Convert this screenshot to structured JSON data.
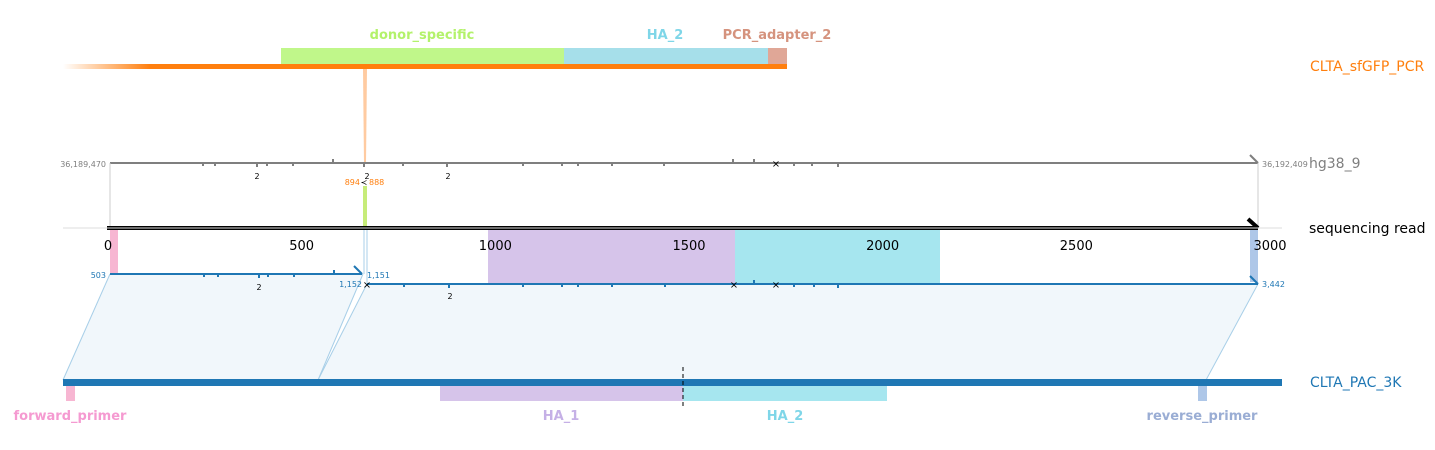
{
  "references": {
    "pcr": {
      "name": "CLTA_sfGFP_PCR",
      "color": "#ff7f0e"
    },
    "genome": {
      "name": "hg38_9",
      "color": "#7f7f7f",
      "start_coord": "36,189,470",
      "end_coord": "36,192,409"
    },
    "read": {
      "name": "sequencing read",
      "color": "#000000"
    },
    "plasmid": {
      "name": "CLTA_PAC_3K",
      "color": "#1f77b4"
    }
  },
  "read_axis": {
    "ticks": [
      "0",
      "500",
      "1000",
      "1500",
      "2000",
      "2500",
      "3000"
    ]
  },
  "features_top": [
    {
      "name": "donor_specific",
      "color": "#c0f78a",
      "label_color": "#b3f26b"
    },
    {
      "name": "HA_2",
      "color": "#a6dfea",
      "label_color": "#7fd6e8"
    },
    {
      "name": "PCR_adapter_2",
      "color": "#e0a797",
      "label_color": "#d5937e"
    }
  ],
  "features_bottom": [
    {
      "name": "forward_primer",
      "color": "#f7b6d2",
      "label_color": "#f59ad1"
    },
    {
      "name": "HA_1",
      "color": "#d6c4ea",
      "label_color": "#c5b0e6"
    },
    {
      "name": "HA_2",
      "color": "#a6e6ef",
      "label_color": "#7fd6e8"
    },
    {
      "name": "reverse_primer",
      "color": "#aec7e8",
      "label_color": "#9aadd4"
    }
  ],
  "genome_labels": {
    "insertion_left": "894",
    "insertion_right": "888",
    "indel_sizes": [
      "2",
      "2",
      "2"
    ]
  },
  "plasmid_labels": {
    "seg1_start": "503",
    "seg1_end": "1,151",
    "seg2_start": "1,152",
    "seg2_end": "3,442",
    "indel_sizes": [
      "2",
      "2"
    ]
  }
}
